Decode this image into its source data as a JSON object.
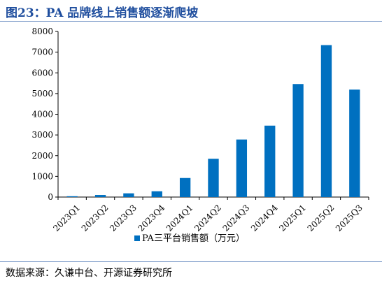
{
  "page": {
    "title": "图23：PA 品牌线上销售额逐渐爬坡",
    "source": "数据来源：久谦中台、开源证券研究所"
  },
  "chart_data": {
    "type": "bar",
    "categories": [
      "2023Q1",
      "2023Q2",
      "2023Q3",
      "2023Q4",
      "2024Q1",
      "2024Q2",
      "2024Q3",
      "2024Q4",
      "2025Q1",
      "2025Q2",
      "2025Q3"
    ],
    "series": [
      {
        "name": "PA三平台销售额（万元）",
        "values": [
          40,
          100,
          180,
          280,
          920,
          1850,
          2780,
          3450,
          5460,
          7340,
          5190
        ],
        "color": "#0070c0"
      }
    ],
    "yticks": [
      0,
      1000,
      2000,
      3000,
      4000,
      5000,
      6000,
      7000,
      8000
    ],
    "ylim": [
      0,
      8000
    ],
    "grid": false,
    "legend": "bottom"
  }
}
